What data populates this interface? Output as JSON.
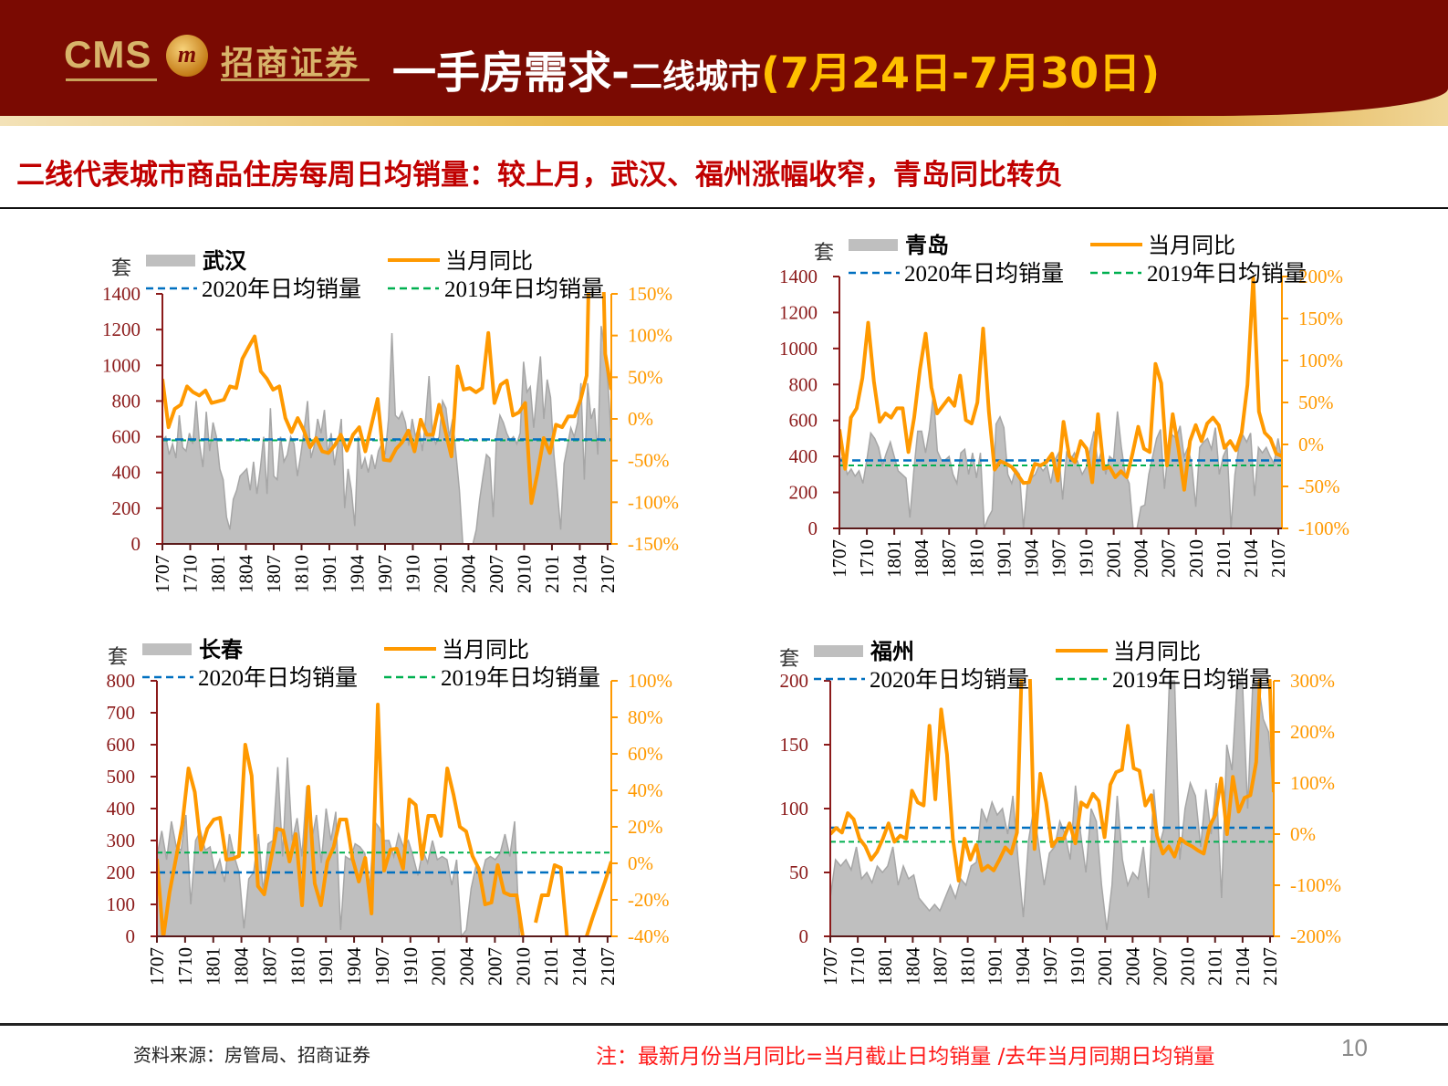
{
  "header": {
    "logo_text": "CMS",
    "logo_cn": "招商证券",
    "title_main": "一手房需求-",
    "title_sub": "二线城市",
    "title_date": "(7月24日-7月30日)"
  },
  "subtitle": "二线代表城市商品住房每周日均销量：较上月，武汉、福州涨幅收窄，青岛同比转负",
  "footer": {
    "source": "资料来源：房管局、招商证券",
    "note": "注：最新月份当月同比=当月截止日均销量 /去年当月同期日均销量",
    "page": "10"
  },
  "colors": {
    "area": "#bfbfbf",
    "yoy": "#ff9900",
    "avg2020": "#0070c0",
    "avg2019": "#00b050",
    "left_axis": "#8b1a1a",
    "header_bg": "#7a0a02",
    "subtitle": "#c00000"
  },
  "chart_data": [
    {
      "type": "area+line",
      "legend": {
        "area": "武汉",
        "yoy": "当月同比",
        "avg2020": "2020年日均销量",
        "avg2019": "2019年日均销量"
      },
      "ylabel": "套",
      "x_ticks": [
        "1707",
        "1710",
        "1801",
        "1804",
        "1807",
        "1810",
        "1901",
        "1904",
        "1907",
        "1910",
        "2001",
        "2004",
        "2007",
        "2010",
        "2101",
        "2104",
        "2107"
      ],
      "y_left": {
        "min": 0,
        "max": 1400,
        "ticks": [
          "0",
          "200",
          "400",
          "600",
          "800",
          "1000",
          "1200",
          "1400"
        ]
      },
      "y_right": {
        "min": -150,
        "max": 150,
        "ticks": [
          "-150%",
          "-100%",
          "-50%",
          "0%",
          "50%",
          "100%",
          "150%"
        ]
      },
      "avg2020": 585,
      "avg2019": 580,
      "area": [
        580,
        600,
        500,
        560,
        480,
        720,
        540,
        520,
        620,
        560,
        800,
        560,
        430,
        740,
        520,
        680,
        600,
        420,
        360,
        150,
        80,
        250,
        300,
        380,
        400,
        420,
        300,
        460,
        280,
        420,
        600,
        280,
        760,
        380,
        360,
        600,
        460,
        500,
        600,
        560,
        380,
        500,
        640,
        800,
        480,
        550,
        700,
        620,
        750,
        500,
        620,
        440,
        560,
        700,
        200,
        420,
        300,
        100,
        600,
        420,
        480,
        400,
        500,
        420,
        520,
        560,
        500,
        700,
        1180,
        720,
        700,
        740,
        680,
        550,
        700,
        600,
        660,
        520,
        700,
        940,
        620,
        560,
        600,
        800,
        760,
        600,
        700,
        500,
        300,
        0,
        0,
        0,
        0,
        80,
        250,
        380,
        500,
        480,
        150,
        600,
        720,
        680,
        620,
        580,
        600,
        560,
        620,
        1020,
        850,
        880,
        650,
        860,
        1050,
        700,
        920,
        820,
        500,
        300,
        80,
        450,
        550,
        650,
        600,
        680,
        900,
        360,
        900,
        700,
        760,
        500,
        1220,
        1100,
        900,
        600
      ],
      "yoy": [
        48,
        -10,
        12,
        17,
        39,
        32,
        28,
        34,
        19,
        21,
        23,
        39,
        37,
        72,
        86,
        99,
        57,
        48,
        35,
        39,
        1,
        -16,
        1,
        -14,
        -34,
        -23,
        -39,
        -41,
        -32,
        -19,
        -38,
        -19,
        -10,
        -39,
        -7,
        24,
        -49,
        -50,
        -36,
        -28,
        -14,
        -39,
        -1,
        -19,
        -19,
        17,
        -14,
        -45,
        63,
        35,
        37,
        32,
        37,
        103,
        19,
        41,
        46,
        4,
        8,
        19,
        -101,
        -65,
        -23,
        -41,
        -7,
        -10,
        3,
        3,
        23,
        52,
        400,
        400,
        78,
        35
      ]
    },
    {
      "type": "area+line",
      "legend": {
        "area": "青岛",
        "yoy": "当月同比",
        "avg2020": "2020年日均销量",
        "avg2019": "2019年日均销量"
      },
      "ylabel": "套",
      "x_ticks": [
        "1707",
        "1710",
        "1801",
        "1804",
        "1807",
        "1810",
        "1901",
        "1904",
        "1907",
        "1910",
        "2001",
        "2004",
        "2007",
        "2010",
        "2101",
        "2104",
        "2107"
      ],
      "y_left": {
        "min": 0,
        "max": 1400,
        "ticks": [
          "0",
          "200",
          "400",
          "600",
          "800",
          "1000",
          "1200",
          "1400"
        ]
      },
      "y_right": {
        "min": -100,
        "max": 200,
        "ticks": [
          "-100%",
          "-50%",
          "0%",
          "50%",
          "100%",
          "150%",
          "200%"
        ]
      },
      "avg2020": 378,
      "avg2019": 350,
      "area": [
        380,
        400,
        300,
        330,
        290,
        320,
        250,
        380,
        530,
        500,
        450,
        350,
        420,
        480,
        400,
        320,
        300,
        280,
        60,
        320,
        540,
        540,
        420,
        550,
        750,
        430,
        380,
        380,
        400,
        300,
        250,
        420,
        440,
        300,
        420,
        280,
        420,
        0,
        60,
        100,
        580,
        620,
        560,
        300,
        250,
        330,
        300,
        0,
        250,
        280,
        300,
        350,
        320,
        350,
        250,
        380,
        420,
        160,
        420,
        380,
        420,
        360,
        300,
        340,
        440,
        540,
        360,
        440,
        300,
        400,
        380,
        650,
        450,
        300,
        250,
        0,
        0,
        120,
        130,
        300,
        400,
        500,
        550,
        220,
        450,
        520,
        500,
        570,
        400,
        450,
        350,
        120,
        450,
        480,
        500,
        440,
        560,
        300,
        400,
        450,
        0,
        300,
        450,
        520,
        480,
        530,
        180,
        450,
        420,
        450,
        400,
        360,
        500,
        380
      ],
      "yoy": [
        18,
        -29,
        32,
        43,
        79,
        145,
        75,
        27,
        37,
        32,
        43,
        43,
        -9,
        32,
        89,
        132,
        68,
        37,
        46,
        55,
        46,
        82,
        29,
        25,
        50,
        138,
        39,
        -30,
        -20,
        -23,
        -27,
        -36,
        -46,
        -45,
        -23,
        -25,
        -21,
        -11,
        -43,
        27,
        -14,
        -21,
        4,
        -5,
        -45,
        36,
        -29,
        -27,
        -39,
        -32,
        -39,
        -11,
        21,
        -5,
        -9,
        96,
        73,
        -25,
        36,
        -5,
        -54,
        4,
        23,
        4,
        25,
        32,
        23,
        -4,
        4,
        -7,
        14,
        71,
        198,
        39,
        14,
        7,
        -11,
        -14
      ]
    },
    {
      "type": "area+line",
      "legend": {
        "area": "长春",
        "yoy": "当月同比",
        "avg2020": "2020年日均销量",
        "avg2019": "2019年日均销量"
      },
      "ylabel": "套",
      "x_ticks": [
        "1707",
        "1710",
        "1801",
        "1804",
        "1807",
        "1810",
        "1901",
        "1904",
        "1907",
        "1910",
        "2001",
        "2004",
        "2007",
        "2010",
        "2101",
        "2104",
        "2107"
      ],
      "y_left": {
        "min": 0,
        "max": 800,
        "ticks": [
          "0",
          "100",
          "200",
          "300",
          "400",
          "500",
          "600",
          "700",
          "800"
        ]
      },
      "y_right": {
        "min": -40,
        "max": 100,
        "ticks": [
          "-40%",
          "-20%",
          "0%",
          "20%",
          "40%",
          "60%",
          "80%",
          "100%"
        ]
      },
      "avg2020": 200,
      "avg2019": 262,
      "area": [
        250,
        330,
        240,
        360,
        280,
        270,
        380,
        100,
        300,
        330,
        270,
        280,
        200,
        240,
        170,
        320,
        250,
        200,
        25,
        180,
        200,
        320,
        140,
        290,
        300,
        530,
        250,
        560,
        300,
        370,
        250,
        470,
        300,
        380,
        230,
        400,
        300,
        390,
        20,
        250,
        240,
        290,
        280,
        260,
        150,
        360,
        340,
        300,
        300,
        250,
        320,
        280,
        300,
        250,
        190,
        270,
        230,
        300,
        240,
        250,
        240,
        160,
        240,
        0,
        20,
        150,
        220,
        180,
        240,
        250,
        240,
        260,
        320,
        250,
        360,
        0,
        0,
        0,
        0,
        0,
        0,
        0,
        0,
        0,
        0,
        0,
        0,
        0,
        0,
        0,
        0,
        0,
        0,
        0,
        0
      ],
      "yoy": [
        2.5,
        -41,
        -16,
        2.5,
        21,
        52,
        39,
        7.5,
        19,
        24,
        25,
        2,
        2.5,
        4,
        65,
        48,
        -12.5,
        -17,
        1,
        19,
        18,
        1,
        16,
        -23,
        42,
        -11,
        -23,
        1,
        9,
        24,
        24,
        2.5,
        -10,
        3,
        -27.5,
        87,
        -4,
        7.5,
        8,
        -3,
        35,
        32,
        2.5,
        26,
        26,
        15,
        52,
        37.5,
        20,
        17.5,
        4,
        -3,
        -22.5,
        -21.5,
        -1,
        -16,
        -17.5,
        -17.5,
        -41,
        null,
        -32.5,
        -17.5,
        -17.5,
        -1,
        -2.5,
        -41,
        null,
        null,
        -41,
        -30,
        -20,
        -10,
        1
      ]
    },
    {
      "type": "area+line",
      "legend": {
        "area": "福州",
        "yoy": "当月同比",
        "avg2020": "2020年日均销量",
        "avg2019": "2019年日均销量"
      },
      "ylabel": "套",
      "x_ticks": [
        "1707",
        "1710",
        "1801",
        "1804",
        "1807",
        "1810",
        "1901",
        "1904",
        "1907",
        "1910",
        "2001",
        "2004",
        "2007",
        "2010",
        "2101",
        "2104",
        "2107"
      ],
      "y_left": {
        "min": 0,
        "max": 200,
        "ticks": [
          "0",
          "50",
          "100",
          "150",
          "200"
        ]
      },
      "y_right": {
        "min": -200,
        "max": 300,
        "ticks": [
          "-200%",
          "-100%",
          "0%",
          "100%",
          "200%",
          "300%"
        ]
      },
      "avg2020": 85,
      "avg2019": 74,
      "area": [
        30,
        60,
        55,
        60,
        52,
        70,
        45,
        50,
        42,
        55,
        50,
        55,
        70,
        40,
        55,
        45,
        48,
        30,
        25,
        20,
        25,
        20,
        30,
        40,
        30,
        45,
        40,
        55,
        58,
        100,
        90,
        105,
        95,
        100,
        80,
        110,
        60,
        15,
        75,
        100,
        70,
        40,
        65,
        70,
        90,
        80,
        60,
        118,
        80,
        50,
        100,
        90,
        40,
        5,
        40,
        110,
        60,
        40,
        50,
        45,
        70,
        30,
        115,
        70,
        85,
        200,
        200,
        60,
        100,
        120,
        110,
        70,
        115,
        80,
        120,
        30,
        150,
        130,
        200,
        200,
        100,
        200,
        200,
        170,
        160,
        110
      ],
      "yoy": [
        0,
        12,
        3,
        41,
        29,
        -9,
        -24,
        -50,
        -35,
        -9,
        21,
        -15,
        -3,
        -9,
        85,
        62,
        56,
        212,
        68,
        244,
        156,
        -9,
        -91,
        -9,
        -50,
        -21,
        -71,
        -62,
        -71,
        -50,
        -26,
        -38,
        3,
        400,
        400,
        -29,
        118,
        62,
        -24,
        -9,
        -9,
        21,
        -18,
        62,
        53,
        79,
        65,
        -6,
        97,
        121,
        126,
        212,
        129,
        124,
        56,
        76,
        -3,
        -38,
        -24,
        -44,
        -9,
        -18,
        -24,
        -32,
        -38,
        15,
        38,
        109,
        0,
        112,
        44,
        71,
        76,
        141,
        400,
        400,
        82
      ]
    }
  ]
}
